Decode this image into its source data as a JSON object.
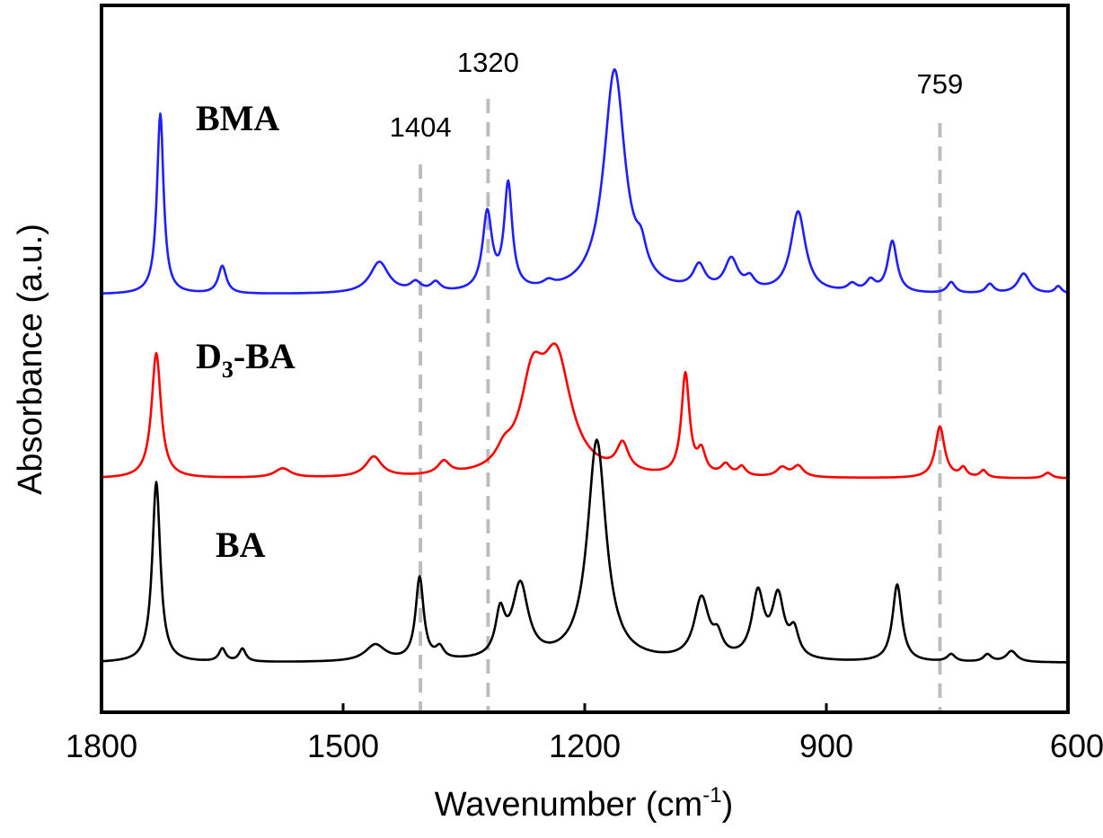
{
  "chart_data": {
    "type": "line",
    "title": "",
    "xlabel": "Wavenumber (cm",
    "xlabel_sup": "-1",
    "xlabel_close": ")",
    "ylabel": "Absorbance (a.u.)",
    "xlim": [
      1800,
      600
    ],
    "x_reversed": true,
    "x_ticks": [
      "1800",
      "1500",
      "1200",
      "900",
      "600"
    ],
    "y_ticks": "none",
    "grid": false,
    "legend": "none",
    "reference_lines": [
      {
        "x": 1404,
        "label": "1404",
        "style": "dashed",
        "color": "#bdbdbd"
      },
      {
        "x": 1320,
        "label": "1320",
        "style": "dashed",
        "color": "#bdbdbd"
      },
      {
        "x": 759,
        "label": "759",
        "style": "dashed",
        "color": "#bdbdbd"
      }
    ],
    "series": [
      {
        "name": "BMA",
        "color": "#1f1fff",
        "offset": 2.0,
        "baseline": 0.0,
        "peaks": [
          [
            1727,
            0.98,
            5
          ],
          [
            1650,
            0.15,
            6
          ],
          [
            1455,
            0.17,
            14
          ],
          [
            1410,
            0.05,
            8
          ],
          [
            1385,
            0.05,
            7
          ],
          [
            1321,
            0.42,
            7
          ],
          [
            1295,
            0.57,
            6
          ],
          [
            1245,
            0.03,
            8
          ],
          [
            1163,
            1.21,
            16
          ],
          [
            1130,
            0.13,
            8
          ],
          [
            1058,
            0.13,
            9
          ],
          [
            1018,
            0.17,
            10
          ],
          [
            995,
            0.06,
            7
          ],
          [
            935,
            0.44,
            11
          ],
          [
            868,
            0.04,
            7
          ],
          [
            845,
            0.06,
            7
          ],
          [
            818,
            0.28,
            7
          ],
          [
            745,
            0.06,
            6
          ],
          [
            697,
            0.05,
            6
          ],
          [
            655,
            0.11,
            9
          ],
          [
            612,
            0.04,
            5
          ]
        ]
      },
      {
        "name": "D",
        "name_sub": "3",
        "name_suffix": "-BA",
        "color": "#ff0000",
        "offset": 1.0,
        "baseline": 0.0,
        "peaks": [
          [
            1732,
            0.68,
            7
          ],
          [
            1575,
            0.05,
            12
          ],
          [
            1462,
            0.11,
            12
          ],
          [
            1375,
            0.07,
            9
          ],
          [
            1300,
            0.08,
            12
          ],
          [
            1265,
            0.45,
            18
          ],
          [
            1235,
            0.6,
            22
          ],
          [
            1153,
            0.15,
            9
          ],
          [
            1075,
            0.55,
            6
          ],
          [
            1055,
            0.12,
            6
          ],
          [
            1025,
            0.06,
            7
          ],
          [
            1005,
            0.05,
            6
          ],
          [
            955,
            0.05,
            8
          ],
          [
            935,
            0.06,
            8
          ],
          [
            759,
            0.28,
            7
          ],
          [
            730,
            0.05,
            5
          ],
          [
            705,
            0.04,
            5
          ],
          [
            625,
            0.03,
            6
          ]
        ]
      },
      {
        "name": "BA",
        "color": "#000000",
        "offset": 0.0,
        "baseline": 0.0,
        "peaks": [
          [
            1732,
            0.98,
            6
          ],
          [
            1650,
            0.07,
            5
          ],
          [
            1625,
            0.07,
            5
          ],
          [
            1460,
            0.09,
            15
          ],
          [
            1405,
            0.45,
            6
          ],
          [
            1380,
            0.06,
            6
          ],
          [
            1305,
            0.23,
            7
          ],
          [
            1280,
            0.4,
            12
          ],
          [
            1185,
            1.2,
            14
          ],
          [
            1055,
            0.33,
            11
          ],
          [
            1035,
            0.1,
            7
          ],
          [
            985,
            0.35,
            9
          ],
          [
            960,
            0.33,
            9
          ],
          [
            940,
            0.14,
            7
          ],
          [
            812,
            0.42,
            7
          ],
          [
            745,
            0.04,
            6
          ],
          [
            700,
            0.04,
            6
          ],
          [
            670,
            0.06,
            8
          ]
        ]
      }
    ]
  }
}
